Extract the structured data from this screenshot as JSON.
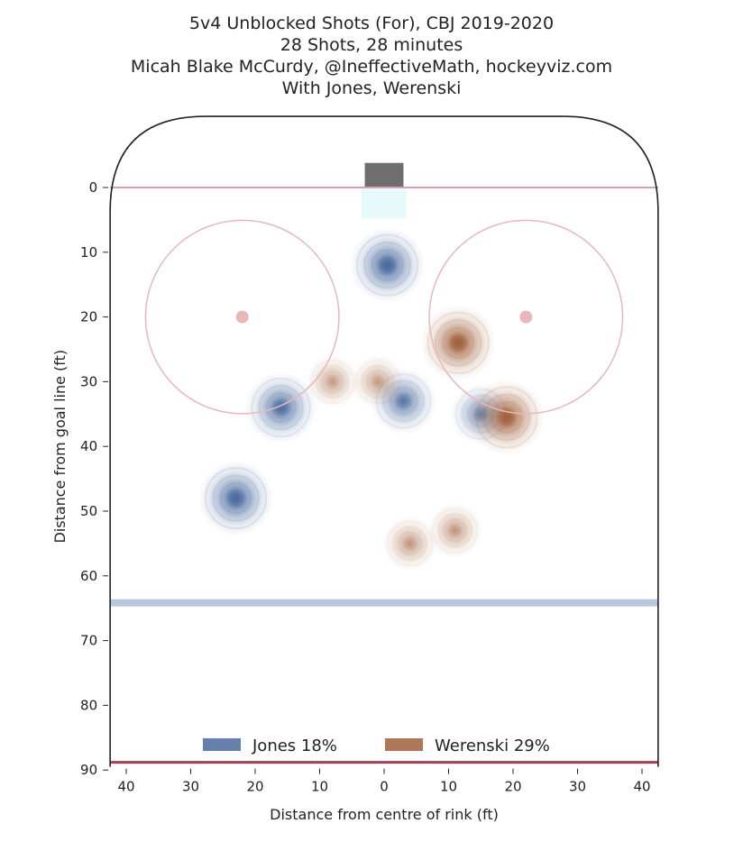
{
  "chart_data": {
    "type": "heatmap",
    "title": "5v4 Unblocked Shots (For), CBJ 2019-2020",
    "subtitle_lines": [
      "28 Shots, 28 minutes",
      "Micah Blake McCurdy, @IneffectiveMath, hockeyviz.com",
      "With Jones, Werenski"
    ],
    "xlabel": "Distance from centre of rink (ft)",
    "ylabel": "Distance from goal line (ft)",
    "xlim": [
      -42.5,
      42.5
    ],
    "ylim": [
      -11,
      90
    ],
    "x_ticks": [
      -40,
      -30,
      -20,
      -10,
      0,
      10,
      20,
      30,
      40
    ],
    "x_tick_labels": [
      "40",
      "30",
      "20",
      "10",
      "0",
      "10",
      "20",
      "30",
      "40"
    ],
    "y_ticks": [
      0,
      10,
      20,
      30,
      40,
      50,
      60,
      70,
      80,
      90
    ],
    "y_tick_labels": [
      "0",
      "10",
      "20",
      "30",
      "40",
      "50",
      "60",
      "70",
      "80",
      "90"
    ],
    "legend_position": "bottom-center",
    "grid": false,
    "series": [
      {
        "name": "Jones 18%",
        "color": "#4a6a9e",
        "hotspots": [
          {
            "x": 0.5,
            "y": 12,
            "intensity": 1.0
          },
          {
            "x": -23,
            "y": 48,
            "intensity": 1.0
          },
          {
            "x": -16,
            "y": 34,
            "intensity": 0.9
          },
          {
            "x": 3,
            "y": 33,
            "intensity": 0.75
          },
          {
            "x": 15,
            "y": 35,
            "intensity": 0.6
          }
        ]
      },
      {
        "name": "Werenski 29%",
        "color": "#a0603a",
        "hotspots": [
          {
            "x": 11.5,
            "y": 24,
            "intensity": 1.0
          },
          {
            "x": 19,
            "y": 35.5,
            "intensity": 1.0
          },
          {
            "x": -8,
            "y": 30,
            "intensity": 0.35
          },
          {
            "x": -1,
            "y": 30,
            "intensity": 0.35
          },
          {
            "x": 4,
            "y": 55,
            "intensity": 0.4
          },
          {
            "x": 11,
            "y": 53,
            "intensity": 0.4
          }
        ]
      }
    ]
  },
  "rink": {
    "board_color": "#222222",
    "goal_line_color": "#d9a0a8",
    "blue_line_color": "#b8c6e0",
    "faceoff_color": "#e8b8b8",
    "net_color": "#6e6e6e",
    "crease_color": "#e3fafb"
  }
}
